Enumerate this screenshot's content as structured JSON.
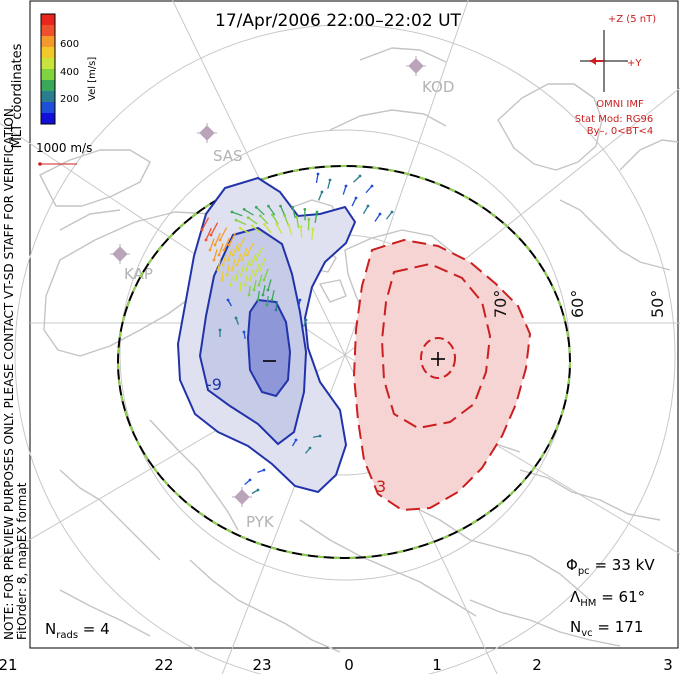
{
  "title": "17/Apr/2006 22:00–22:02 UT",
  "side_note": {
    "line1": "NOTE: FOR PREVIEW PURPOSES ONLY. PLEASE CONTACT VT-SD STAFF FOR VERIFICATION.",
    "line2": "FitOrder: 8, mapEX format"
  },
  "coord_label": "MLT coordinates",
  "colorbar": {
    "label": "Vel [m/s]",
    "ticks": [
      "600",
      "400",
      "200"
    ],
    "colors": [
      "#e8261f",
      "#f0512d",
      "#f59a2a",
      "#f2c92b",
      "#c9e43a",
      "#7fd33c",
      "#3aa85a",
      "#2a7d8f",
      "#1f4fd6",
      "#1010d8"
    ]
  },
  "reference_vector": "1000 m/s",
  "imf": {
    "z_label": "+Z (5 nT)",
    "y_label": "+Y",
    "source": "OMNI IMF",
    "model": "Stat Mod: RG96",
    "condition": "By–, 0<BT<4"
  },
  "stations": [
    "SAS",
    "KOD",
    "KAP",
    "PYK"
  ],
  "lat_labels": [
    "60°",
    "70°",
    "50°"
  ],
  "contour_labels": [
    "-9",
    "3"
  ],
  "polarity": {
    "minus": "–",
    "plus": "+"
  },
  "stats": {
    "phi_sym": "Φ",
    "phi_sub": "pc",
    "phi_val": " = 33 kV",
    "lambda_sym": "Λ",
    "lambda_sub": "HM",
    "lambda_val": " = 61°",
    "nvc_sym": "N",
    "nvc_sub": "vc",
    "nvc_val": " = 171",
    "nrads_sym": "N",
    "nrads_sub": "rads",
    "nrads_val": " = 4"
  },
  "mlt_axis": [
    "21",
    "22",
    "23",
    "0",
    "1",
    "2",
    "3"
  ],
  "colors": {
    "negative_cell": "#2233aa",
    "positive_cell": "#cc1f1f",
    "negative_fill": "#dfe1f1",
    "positive_fill": "#f6d4d4",
    "grid": "#c8c8c8",
    "coast": "#c4c4c4",
    "boundary_dash": "#8fd24b"
  }
}
